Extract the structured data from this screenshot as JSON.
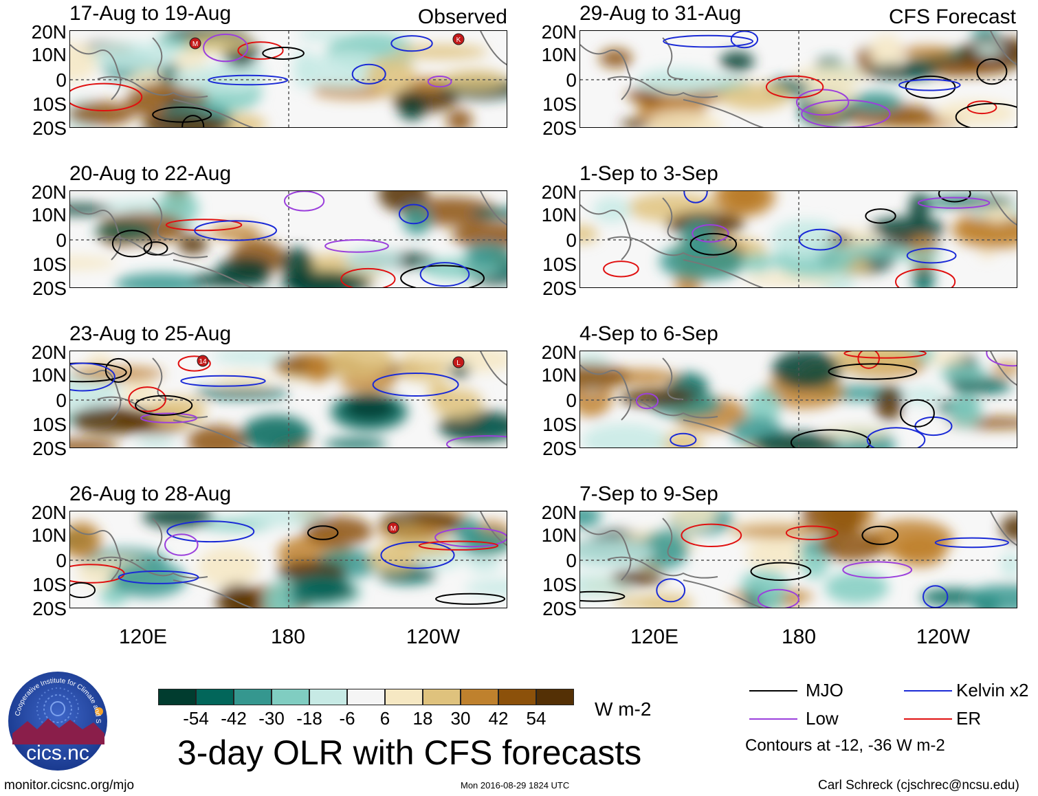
{
  "title": "3-day OLR with CFS forecasts",
  "units": "W m-2",
  "left_column_label": "Observed",
  "right_column_label": "CFS Forecast",
  "lat_labels": [
    "20N",
    "10N",
    "0",
    "10S",
    "20S"
  ],
  "lon_labels": [
    "120E",
    "180",
    "120W"
  ],
  "panels": [
    {
      "title": "17-Aug to 19-Aug",
      "column": "left",
      "row": 0,
      "storms": [
        "M",
        "K"
      ]
    },
    {
      "title": "20-Aug to 22-Aug",
      "column": "left",
      "row": 1,
      "storms": []
    },
    {
      "title": "23-Aug to 25-Aug",
      "column": "left",
      "row": 2,
      "storms": [
        "14",
        "L"
      ]
    },
    {
      "title": "26-Aug to 28-Aug",
      "column": "left",
      "row": 3,
      "storms": [
        "M"
      ]
    },
    {
      "title": "29-Aug to 31-Aug",
      "column": "right",
      "row": 0,
      "storms": []
    },
    {
      "title": "1-Sep to 3-Sep",
      "column": "right",
      "row": 1,
      "storms": []
    },
    {
      "title": "4-Sep to 6-Sep",
      "column": "right",
      "row": 2,
      "storms": []
    },
    {
      "title": "7-Sep to 9-Sep",
      "column": "right",
      "row": 3,
      "storms": []
    }
  ],
  "colorbar": {
    "colors": [
      "#013c2f",
      "#02665a",
      "#35978f",
      "#80cdc1",
      "#c7eae5",
      "#f5f5f5",
      "#f6e8c3",
      "#dfc27d",
      "#bf812d",
      "#8c510a",
      "#543005"
    ],
    "labels": [
      "-54",
      "-42",
      "-30",
      "-18",
      "-6",
      "6",
      "18",
      "30",
      "42",
      "54"
    ]
  },
  "legend": {
    "items": [
      {
        "label": "MJO",
        "color": "#000000"
      },
      {
        "label": "Kelvin x2",
        "color": "#1a2ad6"
      },
      {
        "label": "Low",
        "color": "#9b3fdc"
      },
      {
        "label": "ER",
        "color": "#e01010"
      }
    ],
    "note": "Contours at -12, -36 W m-2"
  },
  "logo_text": "cics.nc",
  "logo_ring_text": "Cooperative Institute for Climate and Satellites",
  "footer": {
    "left": "monitor.cicsnc.org/mjo",
    "center": "Mon 2016-08-29 1824 UTC",
    "right": "Carl Schreck (cjschrec@ncsu.edu)"
  }
}
